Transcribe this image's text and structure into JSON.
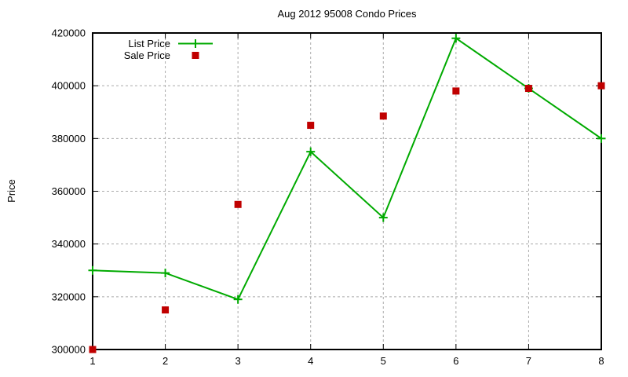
{
  "page": {
    "background": "#ffffff"
  },
  "chart_data": {
    "type": "line",
    "title": "Aug 2012 95008 Condo Prices",
    "xlabel": "",
    "ylabel": "Price",
    "x": [
      1,
      2,
      3,
      4,
      5,
      6,
      7,
      8
    ],
    "series": [
      {
        "name": "List Price",
        "style": "line-with-plus-markers",
        "color": "#00aa00",
        "values": [
          330000,
          329000,
          319000,
          375000,
          350000,
          418000,
          399000,
          380000
        ]
      },
      {
        "name": "Sale Price",
        "style": "square-scatter",
        "color": "#c00000",
        "values": [
          300000,
          315000,
          355000,
          385000,
          388500,
          398000,
          399000,
          400000
        ]
      }
    ],
    "xlim": [
      1,
      8
    ],
    "ylim": [
      300000,
      420000
    ],
    "xticks": [
      1,
      2,
      3,
      4,
      5,
      6,
      7,
      8
    ],
    "yticks": [
      300000,
      320000,
      340000,
      360000,
      380000,
      400000,
      420000
    ],
    "grid": true,
    "legend_position": "top-left-inside",
    "axis_color": "#000000",
    "grid_color": "#ababab",
    "text_color": "#000000"
  }
}
